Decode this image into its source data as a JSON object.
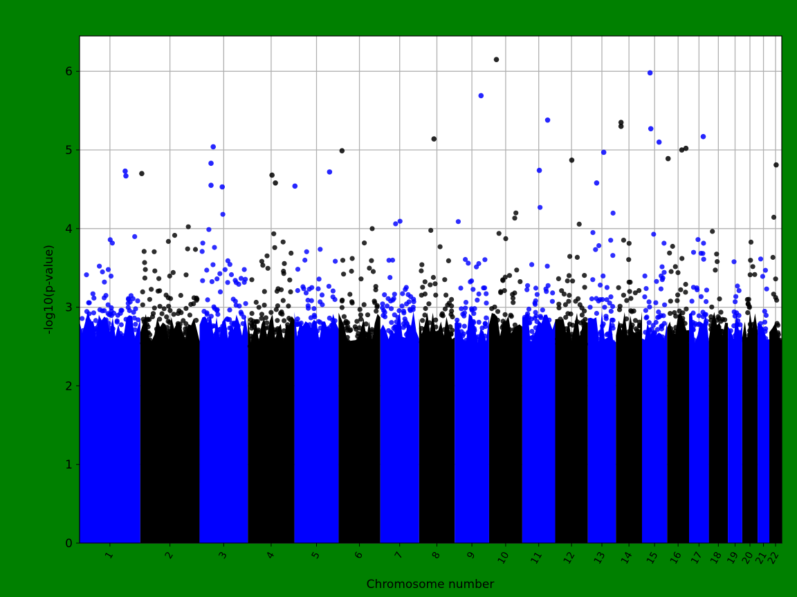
{
  "colors": {
    "background": "#008000",
    "odd_chromosome": "#0000ff",
    "even_chromosome": "#000000",
    "grid": "#b0b0b0"
  },
  "chart_data": {
    "type": "scatter",
    "subtype": "manhattan",
    "title": "",
    "xlabel": "Chromosome number",
    "ylabel": "-log10(p-value)",
    "ylim": [
      0,
      6.45
    ],
    "yticks": [
      0,
      1,
      2,
      3,
      4,
      5,
      6
    ],
    "grid": true,
    "legend": "none",
    "chromosomes": [
      {
        "label": "1",
        "length_mb": 249
      },
      {
        "label": "2",
        "length_mb": 243
      },
      {
        "label": "3",
        "length_mb": 198
      },
      {
        "label": "4",
        "length_mb": 191
      },
      {
        "label": "5",
        "length_mb": 181
      },
      {
        "label": "6",
        "length_mb": 171
      },
      {
        "label": "7",
        "length_mb": 159
      },
      {
        "label": "8",
        "length_mb": 146
      },
      {
        "label": "9",
        "length_mb": 141
      },
      {
        "label": "10",
        "length_mb": 136
      },
      {
        "label": "11",
        "length_mb": 135
      },
      {
        "label": "12",
        "length_mb": 134
      },
      {
        "label": "13",
        "length_mb": 115
      },
      {
        "label": "14",
        "length_mb": 107
      },
      {
        "label": "15",
        "length_mb": 103
      },
      {
        "label": "16",
        "length_mb": 90
      },
      {
        "label": "17",
        "length_mb": 81
      },
      {
        "label": "18",
        "length_mb": 78
      },
      {
        "label": "19",
        "length_mb": 59
      },
      {
        "label": "20",
        "length_mb": 63
      },
      {
        "label": "21",
        "length_mb": 48
      },
      {
        "label": "22",
        "length_mb": 51
      }
    ],
    "top_hits": [
      {
        "chr": "10",
        "pos_mb": 30,
        "value": 6.15
      },
      {
        "chr": "15",
        "pos_mb": 33,
        "value": 5.98
      },
      {
        "chr": "9",
        "pos_mb": 108,
        "value": 5.69
      },
      {
        "chr": "11",
        "pos_mb": 104,
        "value": 5.38
      },
      {
        "chr": "14",
        "pos_mb": 21,
        "value": 5.35
      },
      {
        "chr": "14",
        "pos_mb": 21,
        "value": 5.3
      },
      {
        "chr": "15",
        "pos_mb": 36,
        "value": 5.27
      },
      {
        "chr": "17",
        "pos_mb": 58,
        "value": 5.17
      },
      {
        "chr": "8",
        "pos_mb": 61,
        "value": 5.14
      },
      {
        "chr": "15",
        "pos_mb": 70,
        "value": 5.1
      },
      {
        "chr": "3",
        "pos_mb": 56,
        "value": 5.04
      },
      {
        "chr": "16",
        "pos_mb": 77,
        "value": 5.02
      },
      {
        "chr": "16",
        "pos_mb": 60,
        "value": 5.0
      },
      {
        "chr": "6",
        "pos_mb": 14,
        "value": 4.99
      },
      {
        "chr": "13",
        "pos_mb": 65,
        "value": 4.97
      },
      {
        "chr": "16",
        "pos_mb": 4,
        "value": 4.89
      },
      {
        "chr": "12",
        "pos_mb": 68,
        "value": 4.87
      },
      {
        "chr": "3",
        "pos_mb": 47,
        "value": 4.83
      },
      {
        "chr": "22",
        "pos_mb": 28,
        "value": 4.81
      },
      {
        "chr": "11",
        "pos_mb": 70,
        "value": 4.74
      },
      {
        "chr": "1",
        "pos_mb": 187,
        "value": 4.73
      },
      {
        "chr": "5",
        "pos_mb": 144,
        "value": 4.72
      },
      {
        "chr": "2",
        "pos_mb": 6,
        "value": 4.7
      },
      {
        "chr": "4",
        "pos_mb": 99,
        "value": 4.68
      },
      {
        "chr": "1",
        "pos_mb": 190,
        "value": 4.67
      },
      {
        "chr": "4",
        "pos_mb": 113,
        "value": 4.58
      },
      {
        "chr": "13",
        "pos_mb": 36,
        "value": 4.58
      },
      {
        "chr": "3",
        "pos_mb": 47,
        "value": 4.55
      },
      {
        "chr": "5",
        "pos_mb": 2,
        "value": 4.54
      },
      {
        "chr": "3",
        "pos_mb": 93,
        "value": 4.53
      }
    ]
  }
}
